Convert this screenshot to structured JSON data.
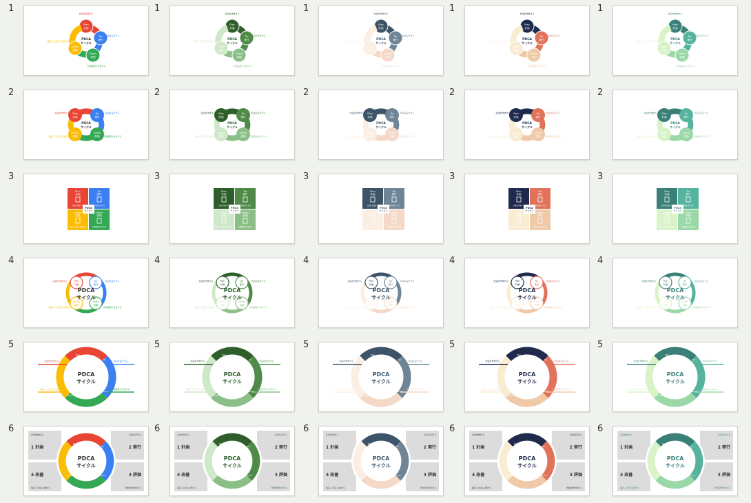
{
  "screen_title": "",
  "labels": {
    "pdca": "PDCA",
    "cycle": "サイクル",
    "plan": "Plan",
    "plan_jp": "計画",
    "do": "Do",
    "do_jp": "実行",
    "check": "Check",
    "check_jp": "評価",
    "action": "Action",
    "action_jp": "改善",
    "n1": "1 計画",
    "n2": "2 実行",
    "n3": "3 評価",
    "n4": "4 改善",
    "note_plan": "計画を作成する",
    "note_do": "計画を実行する",
    "note_check": "行動結果を分析する",
    "note_action": "検証して改善し改善する"
  },
  "themes": [
    {
      "name": "multicolor",
      "c": [
        "#e84535",
        "#3b7ff0",
        "#34a853",
        "#fbbc05"
      ],
      "text": "#333333"
    },
    {
      "name": "green",
      "c": [
        "#2e5e2a",
        "#4f8a48",
        "#8cbf88",
        "#cfe8c9"
      ],
      "text": "#2e5e2a"
    },
    {
      "name": "slate",
      "c": [
        "#3d5468",
        "#6f8596",
        "#f4d9c8",
        "#fbeee3"
      ],
      "text": "#3d5468"
    },
    {
      "name": "navy-coral",
      "c": [
        "#1f2a4d",
        "#e2735b",
        "#efc9a8",
        "#f8ecd3"
      ],
      "text": "#1f2a4d"
    },
    {
      "name": "teal",
      "c": [
        "#3a7f78",
        "#56b39e",
        "#9ad8a8",
        "#d9f3c8"
      ],
      "text": "#3a7f78"
    }
  ],
  "rows": [
    {
      "number": "1",
      "style": "arrow-cycle"
    },
    {
      "number": "2",
      "style": "bubble-cycle"
    },
    {
      "number": "3",
      "style": "puzzle"
    },
    {
      "number": "4",
      "style": "circle-outline"
    },
    {
      "number": "5",
      "style": "ring-lines"
    },
    {
      "number": "6",
      "style": "ring-panels"
    }
  ]
}
